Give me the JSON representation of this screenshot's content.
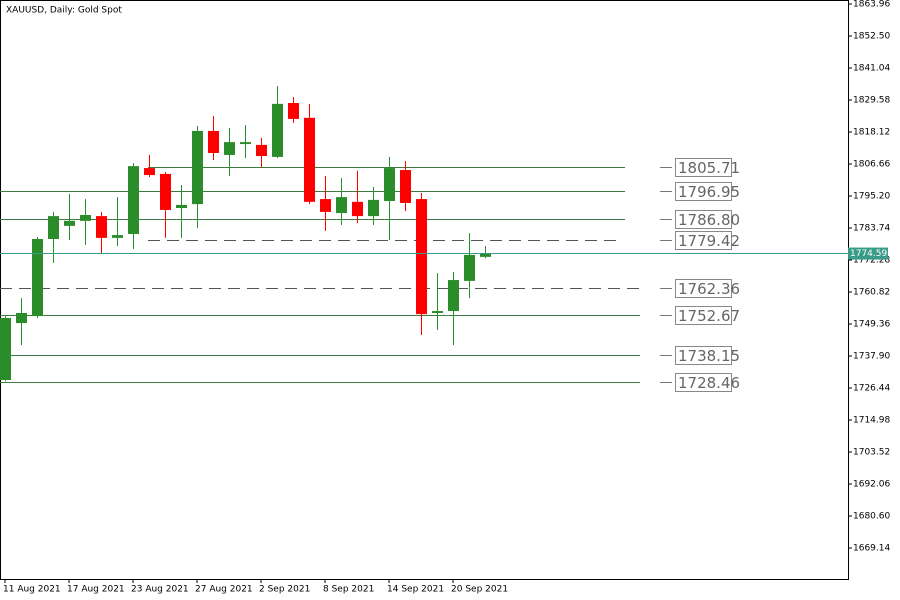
{
  "chart_data": {
    "type": "candlestick",
    "title": "XAUUSD, Daily:  Gold Spot",
    "categories": [
      "11 Aug 2021",
      null,
      null,
      null,
      "17 Aug 2021",
      null,
      null,
      null,
      "23 Aug 2021",
      null,
      null,
      null,
      "27 Aug 2021",
      null,
      null,
      null,
      "2 Sep 2021",
      null,
      null,
      null,
      "8 Sep 2021",
      null,
      null,
      null,
      "14 Sep 2021",
      null,
      null,
      null,
      "20 Sep 2021",
      null,
      null
    ],
    "open": [
      1729.3,
      1749.7,
      1752.2,
      1779.8,
      1784.5,
      1786.3,
      1788.0,
      1780.2,
      1781.6,
      1805.2,
      1803.1,
      1790.9,
      1792.3,
      1818.5,
      1809.9,
      1813.8,
      1813.5,
      1809.2,
      1828.5,
      1823.2,
      1794.1,
      1789.1,
      1793.1,
      1788.0,
      1793.4,
      1804.5,
      1794.1,
      1753.3,
      1754.0,
      1764.8,
      1773.4
    ],
    "high": [
      1752.2,
      1758.6,
      1780.5,
      1789.5,
      1795.9,
      1794.1,
      1789.5,
      1794.8,
      1807.0,
      1809.9,
      1803.8,
      1799.1,
      1820.3,
      1823.8,
      1819.6,
      1820.6,
      1816.0,
      1834.6,
      1830.6,
      1828.2,
      1802.4,
      1801.6,
      1804.2,
      1798.4,
      1809.2,
      1807.7,
      1796.3,
      1767.6,
      1768.0,
      1781.9,
      1777.3
    ],
    "low": [
      1728.9,
      1741.8,
      1751.5,
      1771.2,
      1779.4,
      1777.7,
      1774.8,
      1777.3,
      1776.2,
      1802.0,
      1780.2,
      1780.2,
      1783.7,
      1808.1,
      1802.4,
      1808.8,
      1805.6,
      1808.8,
      1821.4,
      1792.3,
      1782.7,
      1784.8,
      1785.5,
      1784.8,
      1779.4,
      1789.8,
      1745.4,
      1747.2,
      1741.8,
      1758.6,
      1772.9
    ],
    "close": [
      1751.5,
      1753.3,
      1779.8,
      1788.0,
      1786.3,
      1788.4,
      1780.2,
      1781.2,
      1805.9,
      1802.7,
      1790.2,
      1792.0,
      1818.5,
      1810.6,
      1814.5,
      1814.5,
      1809.5,
      1828.2,
      1822.8,
      1793.1,
      1789.5,
      1794.8,
      1788.0,
      1793.8,
      1805.2,
      1792.7,
      1752.9,
      1754.0,
      1765.1,
      1774.1,
      1774.8
    ],
    "up_color": "#2a8c2a",
    "down_color": "#ff0000",
    "ylim": [
      1658.04,
      1865.39
    ],
    "yticks": [
      1863.96,
      {
        "value": 1852.5,
        "label": "1852.50"
      },
      1841.04,
      1829.58,
      1818.12,
      1806.66,
      {
        "value": 1795.2,
        "label": "1795.20"
      },
      1783.74,
      1772.28,
      1760.82,
      1749.36,
      {
        "value": 1737.9,
        "label": "1737.90"
      },
      1726.44,
      1714.98,
      1703.52,
      1692.06,
      {
        "value": 1680.6,
        "label": "1680.60"
      },
      1669.14
    ],
    "last_price": 1774.59,
    "last_price_color": "#3a9a88",
    "levels": {
      "values": [
        1805.71,
        1796.95,
        1786.8,
        1779.42,
        1762.36,
        1752.67,
        1738.15,
        1728.46
      ],
      "value_labels": [
        "1805.71",
        "1796.95",
        "1786.80",
        "1779.42",
        "1762.36",
        "1752.67",
        "1738.15",
        "1728.46"
      ],
      "styles": [
        "solid",
        "solid",
        "solid",
        "dashed",
        "dashed",
        "solid",
        "solid",
        "solid"
      ],
      "color": "#3f7a3f"
    }
  }
}
